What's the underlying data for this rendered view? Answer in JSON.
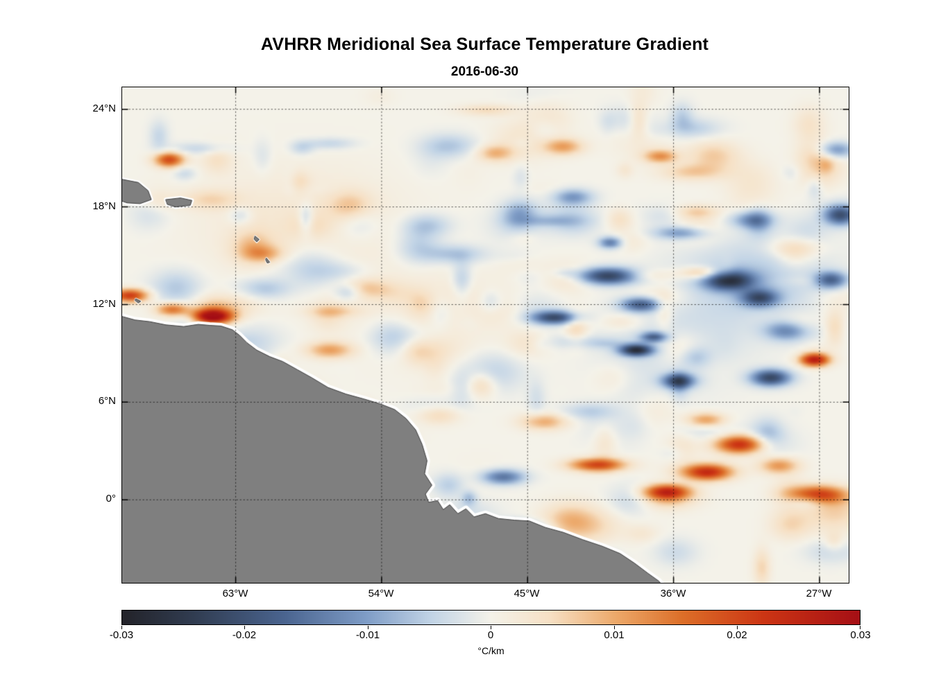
{
  "title": "AVHRR Meridional Sea Surface Temperature Gradient",
  "subtitle": "2016-06-30",
  "chart_data": {
    "type": "heatmap",
    "title": "AVHRR Meridional Sea Surface Temperature Gradient",
    "subtitle": "2016-06-30",
    "grid": "dotted",
    "x_axis": {
      "tick_labels": [
        "63°W",
        "54°W",
        "45°W",
        "36°W",
        "27°W"
      ],
      "tick_lon": [
        -63,
        -54,
        -45,
        -36,
        -27
      ],
      "lon_range": [
        -70.0,
        -25.2
      ]
    },
    "y_axis": {
      "tick_labels": [
        "24°N",
        "18°N",
        "12°N",
        "6°N",
        "0°"
      ],
      "tick_lat": [
        24,
        18,
        12,
        6,
        0
      ],
      "lat_range": [
        -5.1,
        25.35
      ]
    },
    "colorbar": {
      "label": "°C/km",
      "tick_labels": [
        "-0.03",
        "-0.02",
        "-0.01",
        "0",
        "0.01",
        "0.02",
        "0.03"
      ],
      "min": -0.03,
      "max": 0.03,
      "stops": [
        {
          "t": 0.0,
          "color": "#232329"
        },
        {
          "t": 0.1,
          "color": "#313d52"
        },
        {
          "t": 0.22,
          "color": "#4a648f"
        },
        {
          "t": 0.33,
          "color": "#7e9cc6"
        },
        {
          "t": 0.42,
          "color": "#c2d4e6"
        },
        {
          "t": 0.5,
          "color": "#f4f2e9"
        },
        {
          "t": 0.58,
          "color": "#f6e0c4"
        },
        {
          "t": 0.67,
          "color": "#eca869"
        },
        {
          "t": 0.76,
          "color": "#dc6e28"
        },
        {
          "t": 0.87,
          "color": "#cc3514"
        },
        {
          "t": 1.0,
          "color": "#a50f15"
        }
      ]
    },
    "land": {
      "color": "#7f7f7f",
      "edge": "#3c3c3c",
      "coast_halo": "#ffffff",
      "polygons": [
        {
          "name": "south-america",
          "halo": 9,
          "points": [
            [
              -70.3,
              11.35
            ],
            [
              -69.2,
              11.05
            ],
            [
              -68.3,
              10.95
            ],
            [
              -67.3,
              10.75
            ],
            [
              -66.2,
              10.65
            ],
            [
              -65.3,
              10.78
            ],
            [
              -64.6,
              10.72
            ],
            [
              -63.9,
              10.68
            ],
            [
              -63.2,
              10.45
            ],
            [
              -62.75,
              10.1
            ],
            [
              -62.3,
              9.65
            ],
            [
              -61.7,
              9.2
            ],
            [
              -60.9,
              8.8
            ],
            [
              -60.1,
              8.5
            ],
            [
              -59.2,
              8.0
            ],
            [
              -58.3,
              7.5
            ],
            [
              -57.3,
              6.9
            ],
            [
              -56.2,
              6.5
            ],
            [
              -55.1,
              6.2
            ],
            [
              -54.1,
              5.9
            ],
            [
              -53.2,
              5.55
            ],
            [
              -52.5,
              5.0
            ],
            [
              -51.9,
              4.3
            ],
            [
              -51.5,
              3.4
            ],
            [
              -51.2,
              2.4
            ],
            [
              -51.35,
              1.6
            ],
            [
              -50.9,
              0.9
            ],
            [
              -51.3,
              0.35
            ],
            [
              -51.1,
              -0.15
            ],
            [
              -50.55,
              -0.05
            ],
            [
              -50.2,
              -0.6
            ],
            [
              -49.8,
              -0.3
            ],
            [
              -49.3,
              -0.85
            ],
            [
              -48.8,
              -0.55
            ],
            [
              -48.3,
              -1.05
            ],
            [
              -47.6,
              -0.85
            ],
            [
              -46.8,
              -1.15
            ],
            [
              -45.8,
              -1.25
            ],
            [
              -44.9,
              -1.3
            ],
            [
              -43.9,
              -1.7
            ],
            [
              -42.8,
              -2.0
            ],
            [
              -41.6,
              -2.45
            ],
            [
              -40.4,
              -2.85
            ],
            [
              -39.3,
              -3.3
            ],
            [
              -38.4,
              -3.9
            ],
            [
              -37.6,
              -4.5
            ],
            [
              -36.9,
              -5.0
            ],
            [
              -36.6,
              -5.4
            ],
            [
              -70.3,
              -5.4
            ]
          ]
        },
        {
          "name": "hispaniola",
          "halo": 6,
          "points": [
            [
              -70.3,
              19.75
            ],
            [
              -69.0,
              19.5
            ],
            [
              -68.4,
              19.0
            ],
            [
              -68.2,
              18.45
            ],
            [
              -68.9,
              18.2
            ],
            [
              -69.7,
              18.25
            ],
            [
              -70.3,
              18.45
            ]
          ]
        },
        {
          "name": "puerto-rico",
          "halo": 6,
          "points": [
            [
              -67.3,
              18.45
            ],
            [
              -66.4,
              18.55
            ],
            [
              -65.7,
              18.4
            ],
            [
              -65.8,
              18.1
            ],
            [
              -66.7,
              18.0
            ],
            [
              -67.2,
              18.15
            ]
          ]
        },
        {
          "name": "guadeloupe",
          "halo": 3,
          "points": [
            [
              -61.8,
              16.2
            ],
            [
              -61.55,
              16.0
            ],
            [
              -61.7,
              15.85
            ],
            [
              -61.85,
              16.0
            ]
          ]
        },
        {
          "name": "martinique",
          "halo": 3,
          "points": [
            [
              -61.1,
              14.85
            ],
            [
              -60.9,
              14.6
            ],
            [
              -61.05,
              14.55
            ],
            [
              -61.15,
              14.75
            ]
          ]
        },
        {
          "name": "curacao",
          "halo": 3,
          "points": [
            [
              -69.15,
              12.35
            ],
            [
              -68.85,
              12.2
            ],
            [
              -69.0,
              12.1
            ],
            [
              -69.2,
              12.25
            ]
          ]
        }
      ]
    },
    "features": [
      [
        -64.4,
        11.25,
        1.2,
        0.45,
        0.032
      ],
      [
        -66.9,
        11.7,
        1.0,
        0.4,
        0.016
      ],
      [
        -69.5,
        12.55,
        1.1,
        0.4,
        0.022
      ],
      [
        -67.1,
        20.9,
        0.9,
        0.45,
        0.02
      ],
      [
        -57.2,
        9.2,
        1.4,
        0.5,
        0.011
      ],
      [
        -31.9,
        3.4,
        1.5,
        0.55,
        0.024
      ],
      [
        -33.9,
        1.7,
        1.5,
        0.5,
        0.024
      ],
      [
        -40.7,
        2.15,
        1.7,
        0.4,
        0.02
      ],
      [
        -36.4,
        0.5,
        1.4,
        0.45,
        0.023
      ],
      [
        -27.1,
        0.3,
        1.7,
        0.55,
        0.022
      ],
      [
        -27.3,
        8.6,
        0.9,
        0.4,
        0.027
      ],
      [
        -29.5,
        2.1,
        1.2,
        0.5,
        0.012
      ],
      [
        -42.8,
        21.7,
        1.2,
        0.5,
        0.011
      ],
      [
        -36.8,
        21.1,
        1.0,
        0.4,
        0.012
      ],
      [
        -47.0,
        21.3,
        1.1,
        0.5,
        0.009
      ],
      [
        -34.0,
        4.9,
        1.2,
        0.45,
        0.013
      ],
      [
        -44.0,
        4.8,
        1.4,
        0.5,
        0.01
      ],
      [
        -61.3,
        15.1,
        1.2,
        0.5,
        0.008
      ],
      [
        -55.0,
        13.0,
        1.5,
        0.6,
        0.006
      ],
      [
        -32.6,
        13.5,
        1.5,
        0.6,
        -0.024
      ],
      [
        -40.0,
        13.75,
        1.8,
        0.5,
        -0.023
      ],
      [
        -38.0,
        12.0,
        1.2,
        0.45,
        -0.019
      ],
      [
        -30.7,
        12.4,
        1.1,
        0.5,
        -0.018
      ],
      [
        -43.3,
        11.2,
        1.4,
        0.4,
        -0.021
      ],
      [
        -38.3,
        9.2,
        1.0,
        0.35,
        -0.026
      ],
      [
        -37.2,
        10.0,
        0.8,
        0.3,
        -0.016
      ],
      [
        -35.7,
        7.3,
        1.0,
        0.45,
        -0.02
      ],
      [
        -30.0,
        7.5,
        1.2,
        0.5,
        -0.022
      ],
      [
        -25.7,
        17.5,
        1.0,
        0.6,
        -0.02
      ],
      [
        -26.3,
        13.5,
        1.0,
        0.5,
        -0.018
      ],
      [
        -35.5,
        16.4,
        1.6,
        0.4,
        -0.012
      ],
      [
        -39.9,
        15.8,
        0.7,
        0.35,
        -0.014
      ],
      [
        -46.5,
        1.4,
        1.3,
        0.45,
        -0.015
      ],
      [
        -45.9,
        -1.7,
        1.6,
        0.4,
        -0.02
      ],
      [
        -29.0,
        10.4,
        1.3,
        0.6,
        -0.013
      ],
      [
        -42.2,
        18.6,
        1.2,
        0.5,
        -0.011
      ],
      [
        -26.0,
        21.5,
        1.1,
        0.5,
        -0.012
      ],
      [
        -31.2,
        17.2,
        1.3,
        0.5,
        -0.01
      ],
      [
        -31.0,
        13.5,
        4.5,
        2.6,
        -0.006
      ],
      [
        -36.0,
        9.5,
        4.0,
        2.5,
        -0.004
      ],
      [
        -59.0,
        17.0,
        6.0,
        3.5,
        0.003
      ],
      [
        -51.0,
        11.5,
        5.0,
        3.0,
        0.002
      ]
    ],
    "noise": {
      "seed": 7,
      "count": 240,
      "amp": 0.007
    }
  }
}
